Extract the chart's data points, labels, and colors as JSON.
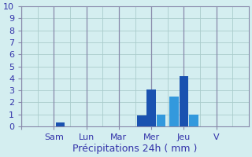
{
  "title": "",
  "xlabel": "Précipitations 24h ( mm )",
  "ylabel": "",
  "background_color": "#d4eef0",
  "bar_color_dark": "#1a52b0",
  "bar_color_light": "#3399dd",
  "grid_color": "#aacccc",
  "axis_color": "#8888aa",
  "tick_color": "#3333aa",
  "ylim": [
    0,
    10
  ],
  "yticks": [
    0,
    1,
    2,
    3,
    4,
    5,
    6,
    7,
    8,
    9,
    10
  ],
  "xlim": [
    0,
    7
  ],
  "day_labels": [
    "",
    "Sam",
    "Lun",
    "Mar",
    "Mer",
    "Jeu",
    "V"
  ],
  "day_positions": [
    0,
    1,
    2,
    3,
    4,
    5,
    6
  ],
  "bars": [
    {
      "x": 1.2,
      "height": 0.3,
      "color": "#1a52b0"
    },
    {
      "x": 3.7,
      "height": 0.9,
      "color": "#1a52b0"
    },
    {
      "x": 4.0,
      "height": 3.1,
      "color": "#1a52b0"
    },
    {
      "x": 4.3,
      "height": 1.0,
      "color": "#3399dd"
    },
    {
      "x": 4.7,
      "height": 2.5,
      "color": "#3399dd"
    },
    {
      "x": 5.0,
      "height": 4.2,
      "color": "#1a52b0"
    },
    {
      "x": 5.3,
      "height": 1.0,
      "color": "#3399dd"
    }
  ],
  "bar_width": 0.28,
  "xlabel_fontsize": 9,
  "tick_fontsize": 8,
  "day_tick_fontsize": 8
}
